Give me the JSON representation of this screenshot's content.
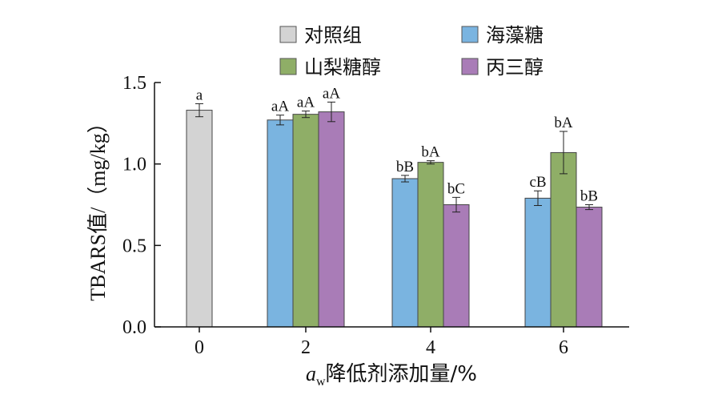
{
  "chart_data": {
    "type": "bar",
    "xlabel_italic": "a",
    "xlabel_subscript": "w",
    "xlabel_rest": "降低剂添加量/%",
    "ylabel": "TBARS值/（mg/kg）",
    "ylim": [
      0,
      1.5
    ],
    "yticks": [
      "0.0",
      "0.5",
      "1.0",
      "1.5"
    ],
    "groups": [
      "0",
      "2",
      "4",
      "6"
    ],
    "series": [
      {
        "name": "对照组",
        "color": "#d3d3d3",
        "values": [
          1.33,
          null,
          null,
          null
        ],
        "errors": [
          0.04,
          null,
          null,
          null
        ],
        "labels": [
          "a",
          "",
          "",
          ""
        ]
      },
      {
        "name": "海藻糖",
        "color": "#7ab4e0",
        "values": [
          null,
          1.27,
          0.91,
          0.79
        ],
        "errors": [
          null,
          0.03,
          0.02,
          0.045
        ],
        "labels": [
          "",
          "aA",
          "bB",
          "cB"
        ]
      },
      {
        "name": "山梨糖醇",
        "color": "#8fae67",
        "values": [
          null,
          1.305,
          1.01,
          1.07
        ],
        "errors": [
          null,
          0.02,
          0.01,
          0.13
        ],
        "labels": [
          "",
          "aA",
          "bA",
          "bA"
        ]
      },
      {
        "name": "丙三醇",
        "color": "#a97cb7",
        "values": [
          null,
          1.32,
          0.75,
          0.735
        ],
        "errors": [
          null,
          0.06,
          0.045,
          0.015
        ],
        "labels": [
          "",
          "aA",
          "bC",
          "bB"
        ]
      }
    ],
    "legend_position": "top",
    "grid": false
  }
}
